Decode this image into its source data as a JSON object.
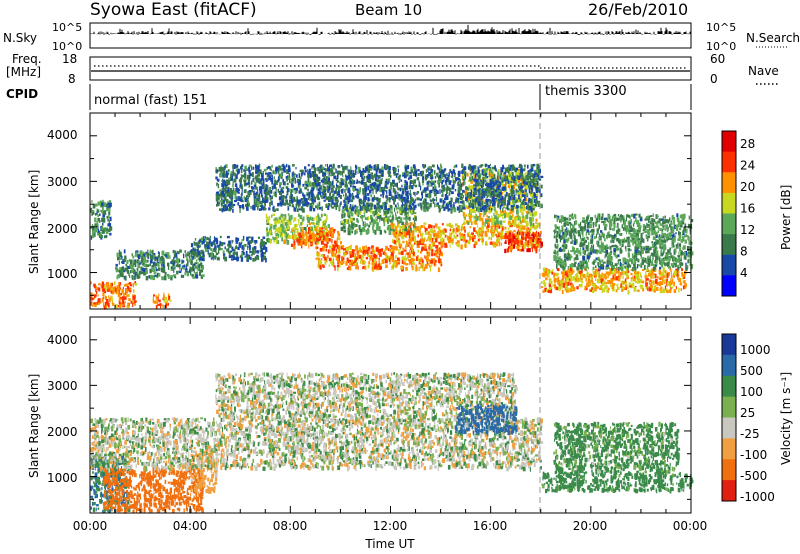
{
  "header": {
    "station": "Syowa East (fitACF)",
    "beam": "Beam 10",
    "date": "26/Feb/2010"
  },
  "nsky_panel": {
    "left_label": "N.Sky",
    "left_ticks": [
      "10^5",
      "10^0"
    ],
    "right_label": "N.Search",
    "right_ticks": [
      "10^5",
      "10^0"
    ]
  },
  "freq_panel": {
    "left_label_line1": "Freq.",
    "left_label_line2": "[MHz]",
    "left_ticks": [
      "18",
      "8"
    ],
    "right_label": "Nave",
    "right_ticks": [
      "60",
      "0"
    ]
  },
  "cpid_panel": {
    "label": "CPID",
    "modes": [
      {
        "name": "normal (fast) 151",
        "start_hour": 0,
        "end_hour": 18
      },
      {
        "name": "themis 3300",
        "start_hour": 18,
        "end_hour": 24
      }
    ]
  },
  "x_axis": {
    "label": "Time UT",
    "ticks": [
      "00:00",
      "04:00",
      "08:00",
      "12:00",
      "16:00",
      "20:00",
      "00:00"
    ],
    "range_hours": [
      0,
      24
    ]
  },
  "power_panel": {
    "ylabel": "Slant Range [km]",
    "yticks": [
      "4000",
      "3000",
      "2000",
      "1000"
    ],
    "colorbar_label": "Power [dB]",
    "colorbar_ticks": [
      "28",
      "24",
      "20",
      "16",
      "12",
      "8",
      "4"
    ],
    "colorbar_colors": [
      "#0000ff",
      "#1848a8",
      "#3a7a4a",
      "#5aa858",
      "#c8d820",
      "#ff9000",
      "#ff3000",
      "#e00000"
    ]
  },
  "velocity_panel": {
    "ylabel": "Slant Range [km]",
    "yticks": [
      "4000",
      "3000",
      "2000",
      "1000"
    ],
    "colorbar_label": "Velocity [m s⁻¹]",
    "colorbar_ticks": [
      "1000",
      "500",
      "100",
      "25",
      "-25",
      "-100",
      "-500",
      "-1000"
    ],
    "colorbar_colors": [
      "#1a3a9a",
      "#2a6aa8",
      "#3a8a4a",
      "#7ab050",
      "#c8c8c0",
      "#f0a040",
      "#f07010",
      "#e02010"
    ]
  },
  "chart_data": {
    "type": "heatmap",
    "title": "Syowa East (fitACF)  Beam 10  26/Feb/2010",
    "xlabel": "Time UT",
    "ylabel": "Slant Range [km]",
    "xlim_hours": [
      0,
      24
    ],
    "ylim_km": [
      200,
      4500
    ],
    "panels": [
      {
        "name": "Power [dB]",
        "clim": [
          0,
          30
        ],
        "regions": [
          {
            "t0": 0.0,
            "t1": 1.8,
            "r0": 250,
            "r1": 800,
            "value": 22
          },
          {
            "t0": 0.0,
            "t1": 0.8,
            "r0": 1800,
            "r1": 2600,
            "value": 10
          },
          {
            "t0": 1.0,
            "t1": 4.5,
            "r0": 900,
            "r1": 1500,
            "value": 10
          },
          {
            "t0": 2.5,
            "t1": 3.2,
            "r0": 250,
            "r1": 550,
            "value": 22
          },
          {
            "t0": 4.0,
            "t1": 7.0,
            "r0": 1300,
            "r1": 1800,
            "value": 8
          },
          {
            "t0": 7.0,
            "t1": 9.5,
            "r0": 1700,
            "r1": 2300,
            "value": 15
          },
          {
            "t0": 8.0,
            "t1": 10.0,
            "r0": 1600,
            "r1": 2000,
            "value": 22
          },
          {
            "t0": 9.0,
            "t1": 14.0,
            "r0": 1100,
            "r1": 1600,
            "value": 21
          },
          {
            "t0": 10.0,
            "t1": 13.0,
            "r0": 1900,
            "r1": 2500,
            "value": 12
          },
          {
            "t0": 12.0,
            "t1": 18.0,
            "r0": 1600,
            "r1": 2100,
            "value": 20
          },
          {
            "t0": 14.8,
            "t1": 17.8,
            "r0": 2100,
            "r1": 3300,
            "value": 17
          },
          {
            "t0": 16.5,
            "t1": 18.0,
            "r0": 1500,
            "r1": 1900,
            "value": 25
          },
          {
            "t0": 18.0,
            "t1": 23.8,
            "r0": 600,
            "r1": 1100,
            "value": 20
          },
          {
            "t0": 18.5,
            "t1": 24.0,
            "r0": 1100,
            "r1": 2300,
            "value": 11
          },
          {
            "t0": 5.0,
            "t1": 18.0,
            "r0": 2400,
            "r1": 3400,
            "value": 8
          }
        ]
      },
      {
        "name": "Velocity [m s⁻¹]",
        "clim": [
          -1000,
          1000
        ],
        "regions": [
          {
            "t0": 0.0,
            "t1": 1.5,
            "r0": 250,
            "r1": 1500,
            "value": 300
          },
          {
            "t0": 0.5,
            "t1": 4.5,
            "r0": 250,
            "r1": 1200,
            "value": -400
          },
          {
            "t0": 4.0,
            "t1": 5.0,
            "r0": 700,
            "r1": 1600,
            "value": -150
          },
          {
            "t0": 0.0,
            "t1": 18.0,
            "r0": 1200,
            "r1": 2300,
            "value": 0
          },
          {
            "t0": 5.0,
            "t1": 17.0,
            "r0": 2300,
            "r1": 3300,
            "value": 0
          },
          {
            "t0": 14.5,
            "t1": 17.0,
            "r0": 2000,
            "r1": 2600,
            "value": 600
          },
          {
            "t0": 18.0,
            "t1": 24.0,
            "r0": 700,
            "r1": 1100,
            "value": 150
          },
          {
            "t0": 18.5,
            "t1": 23.5,
            "r0": 1100,
            "r1": 2200,
            "value": 120
          }
        ]
      }
    ]
  }
}
